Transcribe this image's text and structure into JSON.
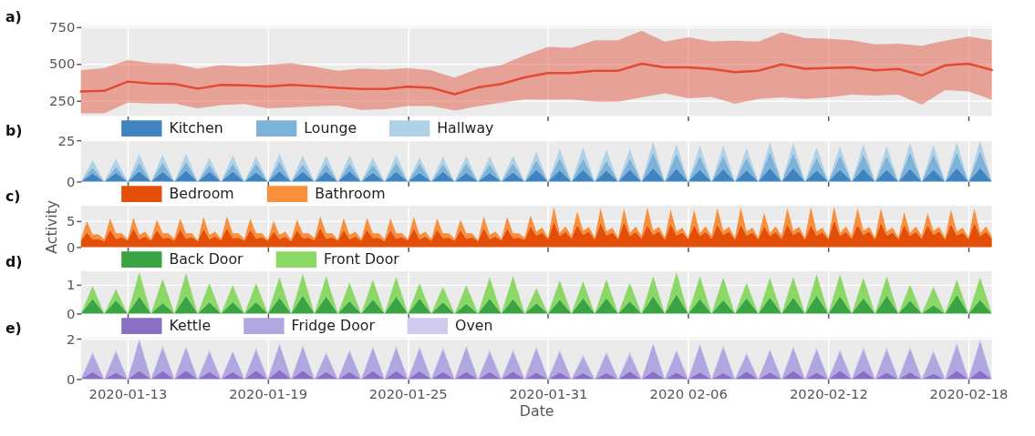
{
  "chart_data": [
    {
      "type": "line",
      "title": "a)",
      "tick_labels": "y",
      "grid": true,
      "xlim": [
        "2020-01-11",
        "2020-02-19"
      ],
      "xticks": [
        "2020-01-13",
        "2020-01-19",
        "2020-01-25",
        "2020-01-31",
        "2020-02-06",
        "2020-02-12",
        "2020-02-18"
      ],
      "ylim": [
        143,
        755
      ],
      "yticks": [
        250,
        500,
        750
      ],
      "x": [
        "2020-01-11",
        "2020-01-12",
        "2020-01-13",
        "2020-01-14",
        "2020-01-15",
        "2020-01-16",
        "2020-01-17",
        "2020-01-18",
        "2020-01-19",
        "2020-01-20",
        "2020-01-21",
        "2020-01-22",
        "2020-01-23",
        "2020-01-24",
        "2020-01-25",
        "2020-01-26",
        "2020-01-27",
        "2020-01-28",
        "2020-01-29",
        "2020-01-30",
        "2020-01-31",
        "2020-02-01",
        "2020-02-02",
        "2020-02-03",
        "2020-02-04",
        "2020-02-05",
        "2020-02-06",
        "2020-02-07",
        "2020-02-08",
        "2020-02-09",
        "2020-02-10",
        "2020-02-11",
        "2020-02-12",
        "2020-02-13",
        "2020-02-14",
        "2020-02-15",
        "2020-02-16",
        "2020-02-17",
        "2020-02-18",
        "2020-02-19"
      ],
      "series": [
        {
          "color": "#e24a33",
          "values": [
            310,
            315,
            378,
            365,
            362,
            330,
            355,
            352,
            345,
            355,
            347,
            335,
            328,
            328,
            343,
            335,
            292,
            338,
            362,
            407,
            436,
            436,
            452,
            452,
            500,
            475,
            475,
            464,
            443,
            452,
            495,
            466,
            470,
            475,
            455,
            464,
            420,
            489,
            500,
            457
          ],
          "lower": [
            162,
            162,
            235,
            228,
            228,
            195,
            218,
            225,
            195,
            202,
            210,
            215,
            185,
            190,
            212,
            212,
            180,
            210,
            235,
            257,
            255,
            257,
            241,
            241,
            270,
            298,
            264,
            273,
            227,
            259,
            270,
            259,
            270,
            289,
            282,
            289,
            220,
            320,
            311,
            255
          ],
          "upper": [
            455,
            470,
            525,
            505,
            500,
            465,
            490,
            480,
            492,
            505,
            480,
            452,
            468,
            460,
            470,
            455,
            405,
            465,
            490,
            557,
            614,
            609,
            659,
            659,
            725,
            650,
            680,
            652,
            657,
            650,
            714,
            675,
            670,
            659,
            632,
            636,
            623,
            657,
            686,
            659
          ]
        }
      ]
    },
    {
      "type": "area",
      "title": "b)",
      "stacked": true,
      "legend": "top left",
      "tick_labels": "y",
      "grid": true,
      "xlim": [
        "2020-01-11",
        "2020-02-19"
      ],
      "xticks": [
        "2020-01-13",
        "2020-01-19",
        "2020-01-25",
        "2020-01-31",
        "2020-02-06",
        "2020-02-12",
        "2020-02-18"
      ],
      "ylim": [
        0,
        25
      ],
      "yticks": [
        0,
        25
      ],
      "x": [
        "2020-01-11T00:00",
        "2020-01-11T12:00",
        "2020-01-12T00:00",
        "2020-01-12T12:00",
        "2020-01-13T00:00",
        "2020-01-13T12:00",
        "2020-01-14T00:00",
        "2020-01-14T12:00",
        "2020-01-15T00:00",
        "2020-01-15T12:00",
        "2020-01-16T00:00",
        "2020-01-16T12:00",
        "2020-01-17T00:00",
        "2020-01-17T12:00",
        "2020-01-18T00:00",
        "2020-01-18T12:00",
        "2020-01-19T00:00",
        "2020-01-19T12:00",
        "2020-01-20T00:00",
        "2020-01-20T12:00",
        "2020-01-21T00:00",
        "2020-01-21T12:00",
        "2020-01-22T00:00",
        "2020-01-22T12:00",
        "2020-01-23T00:00",
        "2020-01-23T12:00",
        "2020-01-24T00:00",
        "2020-01-24T12:00",
        "2020-01-25T00:00",
        "2020-01-25T12:00",
        "2020-01-26T00:00",
        "2020-01-26T12:00",
        "2020-01-27T00:00",
        "2020-01-27T12:00",
        "2020-01-28T00:00",
        "2020-01-28T12:00",
        "2020-01-29T00:00",
        "2020-01-29T12:00",
        "2020-01-30T00:00",
        "2020-01-30T12:00",
        "2020-01-31T00:00",
        "2020-01-31T12:00",
        "2020-02-01T00:00",
        "2020-02-01T12:00",
        "2020-02-02T00:00",
        "2020-02-02T12:00",
        "2020-02-03T00:00",
        "2020-02-03T12:00",
        "2020-02-04T00:00",
        "2020-02-04T12:00",
        "2020-02-05T00:00",
        "2020-02-05T12:00",
        "2020-02-06T00:00",
        "2020-02-06T12:00",
        "2020-02-07T00:00",
        "2020-02-07T12:00",
        "2020-02-08T00:00",
        "2020-02-08T12:00",
        "2020-02-09T00:00",
        "2020-02-09T12:00",
        "2020-02-10T00:00",
        "2020-02-10T12:00",
        "2020-02-11T00:00",
        "2020-02-11T12:00",
        "2020-02-12T00:00",
        "2020-02-12T12:00",
        "2020-02-13T00:00",
        "2020-02-13T12:00",
        "2020-02-14T00:00",
        "2020-02-14T12:00",
        "2020-02-15T00:00",
        "2020-02-15T12:00",
        "2020-02-16T00:00",
        "2020-02-16T12:00",
        "2020-02-17T00:00",
        "2020-02-17T12:00",
        "2020-02-18T00:00",
        "2020-02-18T12:00",
        "2020-02-19T00:00"
      ],
      "series": [
        {
          "name": "Kitchen",
          "color": "#3f84c0",
          "values": [
            0,
            5,
            0,
            5.3,
            0,
            6.3,
            0,
            6,
            0,
            6.8,
            0,
            6,
            0,
            6,
            0,
            5.7,
            0,
            6.3,
            0,
            6,
            0,
            6,
            0,
            6.3,
            0,
            5.3,
            0,
            6,
            0,
            5.3,
            0,
            6,
            0,
            5.3,
            0,
            5.3,
            0,
            5.6,
            0,
            7.3,
            0,
            6.9,
            0,
            7.3,
            0,
            6.9,
            0,
            7.3,
            0,
            8.3,
            0,
            7.9,
            0,
            7.3,
            0,
            7.7,
            0,
            6.9,
            0,
            8.3,
            0,
            8.3,
            0,
            6.9,
            0,
            7.3,
            0,
            7.9,
            0,
            7.3,
            0,
            7.9,
            0,
            7.3,
            0,
            8.3,
            0,
            8.3,
            0
          ]
        },
        {
          "name": "Lounge",
          "color": "#7fb2d8",
          "values": [
            0,
            3.5,
            0,
            3.7,
            0,
            5.3,
            0,
            5.6,
            0,
            5.2,
            0,
            4,
            0,
            5,
            0,
            5.5,
            0,
            6,
            0,
            4.6,
            0,
            5,
            0,
            4.7,
            0,
            4.9,
            0,
            5.4,
            0,
            5.7,
            0,
            4.6,
            0,
            5.9,
            0,
            5.3,
            0,
            5.6,
            0,
            5.8,
            0,
            7.1,
            0,
            6.9,
            0,
            6.2,
            0,
            6.7,
            0,
            9.4,
            0,
            9.2,
            0,
            8.3,
            0,
            7.9,
            0,
            7.7,
            0,
            9.8,
            0,
            9,
            0,
            7.7,
            0,
            8.7,
            0,
            8.8,
            0,
            8.3,
            0,
            9.8,
            0,
            9.4,
            0,
            9.4,
            0,
            10.5,
            0
          ]
        },
        {
          "name": "Hallway",
          "color": "#b0d2e6",
          "values": [
            0,
            4.5,
            0,
            4.8,
            0,
            5.4,
            0,
            4.7,
            0,
            5,
            0,
            4.4,
            0,
            4.9,
            0,
            4.1,
            0,
            4.7,
            0,
            5.3,
            0,
            4.9,
            0,
            4.9,
            0,
            4.6,
            0,
            4.9,
            0,
            3.8,
            0,
            4.7,
            0,
            4.3,
            0,
            4.7,
            0,
            4.6,
            0,
            5.2,
            0,
            5.8,
            0,
            6.6,
            0,
            6.3,
            0,
            5.8,
            0,
            6.7,
            0,
            5.8,
            0,
            6.3,
            0,
            6.3,
            0,
            5.6,
            0,
            5.9,
            0,
            6.2,
            0,
            6.2,
            0,
            5.5,
            0,
            6.2,
            0,
            5.9,
            0,
            5.8,
            0,
            5.6,
            0,
            6.3,
            0,
            6.2,
            0
          ]
        }
      ]
    },
    {
      "type": "area",
      "title": "c)",
      "ylabel": "Activity",
      "stacked": true,
      "legend": "top left",
      "tick_labels": "y",
      "grid": true,
      "xlim": [
        "2020-01-11",
        "2020-02-19"
      ],
      "xticks": [
        "2020-01-13",
        "2020-01-19",
        "2020-01-25",
        "2020-01-31",
        "2020-02-06",
        "2020-02-12",
        "2020-02-18"
      ],
      "ylim": [
        0,
        7.8
      ],
      "yticks": [
        0,
        5
      ],
      "x": [
        "2020-01-11T00:00",
        "2020-01-11T06:00",
        "2020-01-11T12:00",
        "2020-01-11T18:00",
        "2020-01-12T00:00",
        "2020-01-12T06:00",
        "2020-01-12T12:00",
        "2020-01-12T18:00",
        "2020-01-13T00:00",
        "2020-01-13T06:00",
        "2020-01-13T12:00",
        "2020-01-13T18:00",
        "2020-01-14T00:00",
        "2020-01-14T06:00",
        "2020-01-14T12:00",
        "2020-01-14T18:00",
        "2020-01-15T00:00",
        "2020-01-15T06:00",
        "2020-01-15T12:00",
        "2020-01-15T18:00",
        "2020-01-16T00:00",
        "2020-01-16T06:00",
        "2020-01-16T12:00",
        "2020-01-16T18:00",
        "2020-01-17T00:00",
        "2020-01-17T06:00",
        "2020-01-17T12:00",
        "2020-01-17T18:00",
        "2020-01-18T00:00",
        "2020-01-18T06:00",
        "2020-01-18T12:00",
        "2020-01-18T18:00",
        "2020-01-19T00:00",
        "2020-01-19T06:00",
        "2020-01-19T12:00",
        "2020-01-19T18:00",
        "2020-01-20T00:00",
        "2020-01-20T06:00",
        "2020-01-20T12:00",
        "2020-01-20T18:00",
        "2020-01-21T00:00",
        "2020-01-21T06:00",
        "2020-01-21T12:00",
        "2020-01-21T18:00",
        "2020-01-22T00:00",
        "2020-01-22T06:00",
        "2020-01-22T12:00",
        "2020-01-22T18:00",
        "2020-01-23T00:00",
        "2020-01-23T06:00",
        "2020-01-23T12:00",
        "2020-01-23T18:00",
        "2020-01-24T00:00",
        "2020-01-24T06:00",
        "2020-01-24T12:00",
        "2020-01-24T18:00",
        "2020-01-25T00:00",
        "2020-01-25T06:00",
        "2020-01-25T12:00",
        "2020-01-25T18:00",
        "2020-01-26T00:00",
        "2020-01-26T06:00",
        "2020-01-26T12:00",
        "2020-01-26T18:00",
        "2020-01-27T00:00",
        "2020-01-27T06:00",
        "2020-01-27T12:00",
        "2020-01-27T18:00",
        "2020-01-28T00:00",
        "2020-01-28T06:00",
        "2020-01-28T12:00",
        "2020-01-28T18:00",
        "2020-01-29T00:00",
        "2020-01-29T06:00",
        "2020-01-29T12:00",
        "2020-01-29T18:00",
        "2020-01-30T00:00",
        "2020-01-30T06:00",
        "2020-01-30T12:00",
        "2020-01-30T18:00",
        "2020-01-31T00:00",
        "2020-01-31T06:00",
        "2020-01-31T12:00",
        "2020-01-31T18:00",
        "2020-02-01T00:00",
        "2020-02-01T06:00",
        "2020-02-01T12:00",
        "2020-02-01T18:00",
        "2020-02-02T00:00",
        "2020-02-02T06:00",
        "2020-02-02T12:00",
        "2020-02-02T18:00",
        "2020-02-03T00:00",
        "2020-02-03T06:00",
        "2020-02-03T12:00",
        "2020-02-03T18:00",
        "2020-02-04T00:00",
        "2020-02-04T06:00",
        "2020-02-04T12:00",
        "2020-02-04T18:00",
        "2020-02-05T00:00",
        "2020-02-05T06:00",
        "2020-02-05T12:00",
        "2020-02-05T18:00",
        "2020-02-06T00:00",
        "2020-02-06T06:00",
        "2020-02-06T12:00",
        "2020-02-06T18:00",
        "2020-02-07T00:00",
        "2020-02-07T06:00",
        "2020-02-07T12:00",
        "2020-02-07T18:00",
        "2020-02-08T00:00",
        "2020-02-08T06:00",
        "2020-02-08T12:00",
        "2020-02-08T18:00",
        "2020-02-09T00:00",
        "2020-02-09T06:00",
        "2020-02-09T12:00",
        "2020-02-09T18:00",
        "2020-02-10T00:00",
        "2020-02-10T06:00",
        "2020-02-10T12:00",
        "2020-02-10T18:00",
        "2020-02-11T00:00",
        "2020-02-11T06:00",
        "2020-02-11T12:00",
        "2020-02-11T18:00",
        "2020-02-12T00:00",
        "2020-02-12T06:00",
        "2020-02-12T12:00",
        "2020-02-12T18:00",
        "2020-02-13T00:00",
        "2020-02-13T06:00",
        "2020-02-13T12:00",
        "2020-02-13T18:00",
        "2020-02-14T00:00",
        "2020-02-14T06:00",
        "2020-02-14T12:00",
        "2020-02-14T18:00",
        "2020-02-15T00:00",
        "2020-02-15T06:00",
        "2020-02-15T12:00",
        "2020-02-15T18:00",
        "2020-02-16T00:00",
        "2020-02-16T06:00",
        "2020-02-16T12:00",
        "2020-02-16T18:00",
        "2020-02-17T00:00",
        "2020-02-17T06:00",
        "2020-02-17T12:00",
        "2020-02-17T18:00",
        "2020-02-18T00:00",
        "2020-02-18T06:00",
        "2020-02-18T12:00",
        "2020-02-18T18:00",
        "2020-02-19T00:00"
      ],
      "series": [
        {
          "name": "Bedroom",
          "color": "#e34f08",
          "values": [
            1.2,
            2.8,
            1.5,
            1.6,
            1.1,
            3.3,
            1.6,
            1.9,
            1.3,
            3.5,
            1.5,
            2.0,
            1.2,
            3.2,
            1.7,
            1.8,
            1.2,
            3.4,
            1.6,
            1.9,
            1.1,
            3.5,
            1.5,
            2.0,
            1.3,
            3.6,
            1.7,
            1.8,
            1.2,
            3.3,
            1.6,
            1.9,
            1.2,
            3.0,
            1.5,
            2.0,
            1.1,
            3.2,
            1.7,
            1.8,
            1.3,
            3.6,
            1.6,
            1.9,
            1.2,
            3.3,
            1.5,
            2.0,
            1.2,
            3.3,
            1.7,
            1.8,
            1.1,
            3.2,
            1.6,
            1.9,
            1.3,
            3.5,
            1.5,
            2.0,
            1.2,
            3.3,
            1.7,
            1.8,
            1.2,
            3.2,
            1.6,
            1.9,
            1.1,
            3.6,
            1.5,
            2.0,
            1.3,
            3.5,
            1.7,
            1.8,
            1.4,
            4.0,
            2.2,
            2.8,
            1.5,
            4.8,
            2.1,
            2.9,
            1.6,
            4.2,
            2.3,
            3.0,
            1.4,
            4.6,
            2.2,
            2.8,
            1.5,
            4.8,
            2.1,
            2.9,
            1.6,
            4.2,
            2.3,
            3.0,
            1.4,
            4.4,
            2.2,
            2.8,
            1.5,
            4.2,
            2.1,
            2.9,
            1.6,
            4.2,
            2.3,
            3.0,
            1.4,
            4.2,
            2.2,
            2.8,
            1.5,
            4.0,
            2.1,
            2.9,
            1.6,
            4.3,
            2.3,
            3.0,
            1.4,
            4.2,
            2.2,
            2.8,
            1.5,
            5.1,
            2.1,
            2.9,
            1.6,
            4.2,
            2.3,
            3.0,
            1.4,
            4.6,
            2.2,
            2.8,
            1.5,
            4.2,
            2.1,
            2.9,
            1.6,
            4.2,
            2.3,
            3.0,
            1.4,
            4.4,
            2.2,
            2.8,
            1.5,
            4.6,
            2.1,
            2.9,
            1.6
          ]
        },
        {
          "name": "Bathroom",
          "color": "#f98e3b",
          "values": [
            0.3,
            2.1,
            0.9,
            0.8,
            0.4,
            2.1,
            1.0,
            0.7,
            0.2,
            2.1,
            0.8,
            0.9,
            0.3,
            2.0,
            0.9,
            0.8,
            0.4,
            2.0,
            1.0,
            0.7,
            0.2,
            2.2,
            0.8,
            0.9,
            0.3,
            2.2,
            0.9,
            0.8,
            0.4,
            2.1,
            1.0,
            0.7,
            0.2,
            2.0,
            0.8,
            0.9,
            0.3,
            2.0,
            0.9,
            0.8,
            0.4,
            2.2,
            1.0,
            0.7,
            0.2,
            2.2,
            0.8,
            0.9,
            0.3,
            2.2,
            0.9,
            0.8,
            0.4,
            2.2,
            1.0,
            0.7,
            0.2,
            2.2,
            0.8,
            0.9,
            0.3,
            2.1,
            0.9,
            0.8,
            0.4,
            2.0,
            1.0,
            0.7,
            0.2,
            2.2,
            0.8,
            0.9,
            0.3,
            2.2,
            0.9,
            0.8,
            0.4,
            2.0,
            0.7,
            0.9,
            0.3,
            2.8,
            0.6,
            1.0,
            0.5,
            2.5,
            0.8,
            0.8,
            0.4,
            2.8,
            0.7,
            0.9,
            0.3,
            2.5,
            0.6,
            1.0,
            0.5,
            3.3,
            0.8,
            0.8,
            0.4,
            2.7,
            0.7,
            0.9,
            0.3,
            2.9,
            0.6,
            1.0,
            0.5,
            3.2,
            0.8,
            0.8,
            0.4,
            3.3,
            0.7,
            0.9,
            0.3,
            2.5,
            0.6,
            1.0,
            0.5,
            3.1,
            0.8,
            0.8,
            0.4,
            3.4,
            0.7,
            0.9,
            0.3,
            2.6,
            0.6,
            1.0,
            0.5,
            3.2,
            0.8,
            0.8,
            0.4,
            2.8,
            0.7,
            0.9,
            0.3,
            2.4,
            0.6,
            1.0,
            0.5,
            2.2,
            0.8,
            0.8,
            0.4,
            2.7,
            0.7,
            0.9,
            0.3,
            2.7,
            0.6,
            1.0,
            0.4
          ]
        }
      ]
    },
    {
      "type": "area",
      "title": "d)",
      "stacked": true,
      "legend": "top left",
      "tick_labels": "y",
      "grid": true,
      "xlim": [
        "2020-01-11",
        "2020-02-19"
      ],
      "xticks": [
        "2020-01-13",
        "2020-01-19",
        "2020-01-25",
        "2020-01-31",
        "2020-02-06",
        "2020-02-12",
        "2020-02-18"
      ],
      "ylim": [
        0,
        1.46
      ],
      "yticks": [
        0,
        1
      ],
      "x": [
        "2020-01-11T00:00",
        "2020-01-11T12:00",
        "2020-01-12T00:00",
        "2020-01-12T12:00",
        "2020-01-13T00:00",
        "2020-01-13T12:00",
        "2020-01-14T00:00",
        "2020-01-14T12:00",
        "2020-01-15T00:00",
        "2020-01-15T12:00",
        "2020-01-16T00:00",
        "2020-01-16T12:00",
        "2020-01-17T00:00",
        "2020-01-17T12:00",
        "2020-01-18T00:00",
        "2020-01-18T12:00",
        "2020-01-19T00:00",
        "2020-01-19T12:00",
        "2020-01-20T00:00",
        "2020-01-20T12:00",
        "2020-01-21T00:00",
        "2020-01-21T12:00",
        "2020-01-22T00:00",
        "2020-01-22T12:00",
        "2020-01-23T00:00",
        "2020-01-23T12:00",
        "2020-01-24T00:00",
        "2020-01-24T12:00",
        "2020-01-25T00:00",
        "2020-01-25T12:00",
        "2020-01-26T00:00",
        "2020-01-26T12:00",
        "2020-01-27T00:00",
        "2020-01-27T12:00",
        "2020-01-28T00:00",
        "2020-01-28T12:00",
        "2020-01-29T00:00",
        "2020-01-29T12:00",
        "2020-01-30T00:00",
        "2020-01-30T12:00",
        "2020-01-31T00:00",
        "2020-01-31T12:00",
        "2020-02-01T00:00",
        "2020-02-01T12:00",
        "2020-02-02T00:00",
        "2020-02-02T12:00",
        "2020-02-03T00:00",
        "2020-02-03T12:00",
        "2020-02-04T00:00",
        "2020-02-04T12:00",
        "2020-02-05T00:00",
        "2020-02-05T12:00",
        "2020-02-06T00:00",
        "2020-02-06T12:00",
        "2020-02-07T00:00",
        "2020-02-07T12:00",
        "2020-02-08T00:00",
        "2020-02-08T12:00",
        "2020-02-09T00:00",
        "2020-02-09T12:00",
        "2020-02-10T00:00",
        "2020-02-10T12:00",
        "2020-02-11T00:00",
        "2020-02-11T12:00",
        "2020-02-12T00:00",
        "2020-02-12T12:00",
        "2020-02-13T00:00",
        "2020-02-13T12:00",
        "2020-02-14T00:00",
        "2020-02-14T12:00",
        "2020-02-15T00:00",
        "2020-02-15T12:00",
        "2020-02-16T00:00",
        "2020-02-16T12:00",
        "2020-02-17T00:00",
        "2020-02-17T12:00",
        "2020-02-18T00:00",
        "2020-02-18T12:00",
        "2020-02-19T00:00"
      ],
      "series": [
        {
          "name": "Back Door",
          "color": "#3aa343",
          "values": [
            0,
            0.5,
            0,
            0.46,
            0,
            0.59,
            0,
            0.37,
            0,
            0.61,
            0,
            0.39,
            0,
            0.4,
            0,
            0.4,
            0,
            0.55,
            0,
            0.62,
            0,
            0.59,
            0,
            0.43,
            0,
            0.49,
            0,
            0.59,
            0,
            0.52,
            0,
            0.39,
            0,
            0.34,
            0,
            0.52,
            0,
            0.5,
            0,
            0.36,
            0,
            0.48,
            0,
            0.53,
            0,
            0.53,
            0,
            0.42,
            0,
            0.6,
            0,
            0.66,
            0,
            0.5,
            0,
            0.47,
            0,
            0.53,
            0,
            0.56,
            0,
            0.56,
            0,
            0.62,
            0,
            0.6,
            0,
            0.53,
            0,
            0.62,
            0,
            0.45,
            0,
            0.29,
            0,
            0.65,
            0,
            0.47,
            0
          ]
        },
        {
          "name": "Front Door",
          "color": "#8bd866",
          "values": [
            0,
            0.45,
            0,
            0.39,
            0,
            0.85,
            0,
            0.83,
            0,
            0.79,
            0,
            0.66,
            0,
            0.58,
            0,
            0.65,
            0,
            0.71,
            0,
            0.76,
            0,
            0.71,
            0,
            0.64,
            0,
            0.68,
            0,
            0.68,
            0,
            0.53,
            0,
            0.54,
            0,
            0.64,
            0,
            0.74,
            0,
            0.8,
            0,
            0.52,
            0,
            0.67,
            0,
            0.59,
            0,
            0.66,
            0,
            0.64,
            0,
            0.7,
            0,
            0.76,
            0,
            0.8,
            0,
            0.78,
            0,
            0.53,
            0,
            0.68,
            0,
            0.71,
            0,
            0.74,
            0,
            0.76,
            0,
            0.71,
            0,
            0.67,
            0,
            0.55,
            0,
            0.63,
            0,
            0.54,
            0,
            0.78,
            0
          ]
        }
      ]
    },
    {
      "type": "area",
      "title": "e)",
      "xlabel": "Date",
      "stacked": true,
      "legend": "top left",
      "grid": true,
      "xlim": [
        "2020-01-11",
        "2020-02-19"
      ],
      "xticks": [
        "2020-01-13",
        "2020-01-19",
        "2020-01-25",
        "2020-01-31",
        {
          "value": "2020-02-06",
          "label": "2020 02-06"
        },
        "2020-02-12",
        "2020-02-18"
      ],
      "ylim": [
        0,
        2.05
      ],
      "yticks": [
        0,
        2
      ],
      "x": [
        "2020-01-11T00:00",
        "2020-01-11T12:00",
        "2020-01-12T00:00",
        "2020-01-12T12:00",
        "2020-01-13T00:00",
        "2020-01-13T12:00",
        "2020-01-14T00:00",
        "2020-01-14T12:00",
        "2020-01-15T00:00",
        "2020-01-15T12:00",
        "2020-01-16T00:00",
        "2020-01-16T12:00",
        "2020-01-17T00:00",
        "2020-01-17T12:00",
        "2020-01-18T00:00",
        "2020-01-18T12:00",
        "2020-01-19T00:00",
        "2020-01-19T12:00",
        "2020-01-20T00:00",
        "2020-01-20T12:00",
        "2020-01-21T00:00",
        "2020-01-21T12:00",
        "2020-01-22T00:00",
        "2020-01-22T12:00",
        "2020-01-23T00:00",
        "2020-01-23T12:00",
        "2020-01-24T00:00",
        "2020-01-24T12:00",
        "2020-01-25T00:00",
        "2020-01-25T12:00",
        "2020-01-26T00:00",
        "2020-01-26T12:00",
        "2020-01-27T00:00",
        "2020-01-27T12:00",
        "2020-01-28T00:00",
        "2020-01-28T12:00",
        "2020-01-29T00:00",
        "2020-01-29T12:00",
        "2020-01-30T00:00",
        "2020-01-30T12:00",
        "2020-01-31T00:00",
        "2020-01-31T12:00",
        "2020-02-01T00:00",
        "2020-02-01T12:00",
        "2020-02-02T00:00",
        "2020-02-02T12:00",
        "2020-02-03T00:00",
        "2020-02-03T12:00",
        "2020-02-04T00:00",
        "2020-02-04T12:00",
        "2020-02-05T00:00",
        "2020-02-05T12:00",
        "2020-02-06T00:00",
        "2020-02-06T12:00",
        "2020-02-07T00:00",
        "2020-02-07T12:00",
        "2020-02-08T00:00",
        "2020-02-08T12:00",
        "2020-02-09T00:00",
        "2020-02-09T12:00",
        "2020-02-10T00:00",
        "2020-02-10T12:00",
        "2020-02-11T00:00",
        "2020-02-11T12:00",
        "2020-02-12T00:00",
        "2020-02-12T12:00",
        "2020-02-13T00:00",
        "2020-02-13T12:00",
        "2020-02-14T00:00",
        "2020-02-14T12:00",
        "2020-02-15T00:00",
        "2020-02-15T12:00",
        "2020-02-16T00:00",
        "2020-02-16T12:00",
        "2020-02-17T00:00",
        "2020-02-17T12:00",
        "2020-02-18T00:00",
        "2020-02-18T12:00",
        "2020-02-19T00:00"
      ],
      "series": [
        {
          "name": "Kettle",
          "color": "#8a70c4",
          "values": [
            0,
            0.36,
            0,
            0.33,
            0,
            0.43,
            0,
            0.4,
            0,
            0.43,
            0,
            0.36,
            0,
            0.36,
            0,
            0.43,
            0,
            0.47,
            0,
            0.43,
            0,
            0.36,
            0,
            0.36,
            0,
            0.4,
            0,
            0.4,
            0,
            0.4,
            0,
            0.36,
            0,
            0.36,
            0,
            0.36,
            0,
            0.38,
            0,
            0.33,
            0,
            0.34,
            0,
            0.3,
            0,
            0.3,
            0,
            0.38,
            0,
            0.38,
            0,
            0.33,
            0,
            0.34,
            0,
            0.3,
            0,
            0.38,
            0,
            0.34,
            0,
            0.41,
            0,
            0.33,
            0,
            0.41,
            0,
            0.41,
            0,
            0.33,
            0,
            0.34,
            0,
            0.26,
            0,
            0.41,
            0,
            0.44,
            0
          ]
        },
        {
          "name": "Fridge Door",
          "color": "#b0a6e0",
          "values": [
            0,
            0.9,
            0,
            1.03,
            0,
            1.52,
            0,
            1.17,
            0,
            1.14,
            0,
            1.0,
            0,
            1.0,
            0,
            1.05,
            0,
            1.24,
            0,
            1.17,
            0,
            0.9,
            0,
            1.04,
            0,
            1.17,
            0,
            1.17,
            0,
            1.13,
            0,
            1.12,
            0,
            1.24,
            0,
            1.0,
            0,
            1.01,
            0,
            1.23,
            0,
            1.02,
            0,
            0.81,
            0,
            0.98,
            0,
            0.85,
            0,
            1.34,
            0,
            1.06,
            0,
            1.35,
            0,
            1.31,
            0,
            0.85,
            0,
            1.1,
            0,
            1.15,
            0,
            1.15,
            0,
            0.98,
            0,
            1.08,
            0,
            1.16,
            0,
            1.18,
            0,
            1.07,
            0,
            1.31,
            0,
            1.45,
            0
          ]
        },
        {
          "name": "Oven",
          "color": "#d0cbec",
          "values": [
            0,
            0.1,
            0,
            0.12,
            0,
            0.05,
            0,
            0.12,
            0,
            0.09,
            0,
            0.12,
            0,
            0.04,
            0,
            0.09,
            0,
            0.08,
            0,
            0.11,
            0,
            0.1,
            0,
            0.08,
            0,
            0.09,
            0,
            0.09,
            0,
            0.13,
            0,
            0.12,
            0,
            0.06,
            0,
            0.12,
            0,
            0.1,
            0,
            0.1,
            0,
            0.13,
            0,
            0.12,
            0,
            0.11,
            0,
            0.16,
            0,
            0.08,
            0,
            0.1,
            0,
            0.08,
            0,
            0.08,
            0,
            0.1,
            0,
            0.05,
            0,
            0.1,
            0,
            0.09,
            0,
            0.09,
            0,
            0.12,
            0,
            0.12,
            0,
            0.09,
            0,
            0.11,
            0,
            0.13,
            0,
            0.08,
            0
          ]
        }
      ]
    }
  ]
}
